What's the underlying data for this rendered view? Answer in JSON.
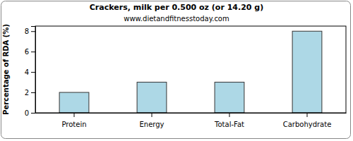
{
  "chart_data": {
    "type": "bar",
    "title": "Crackers, milk per 0.500 oz (or 14.20 g)",
    "subtitle": "www.dietandfitnesstoday.com",
    "y_label": "Percentage of RDA (%)",
    "categories": [
      "Protein",
      "Energy",
      "Total-Fat",
      "Carbohydrate"
    ],
    "values": [
      2,
      3,
      3,
      8
    ],
    "color": "#add8e6",
    "ylim": [
      0,
      8.5
    ],
    "yticks": [
      0,
      2,
      4,
      6,
      8
    ],
    "grid": false
  }
}
